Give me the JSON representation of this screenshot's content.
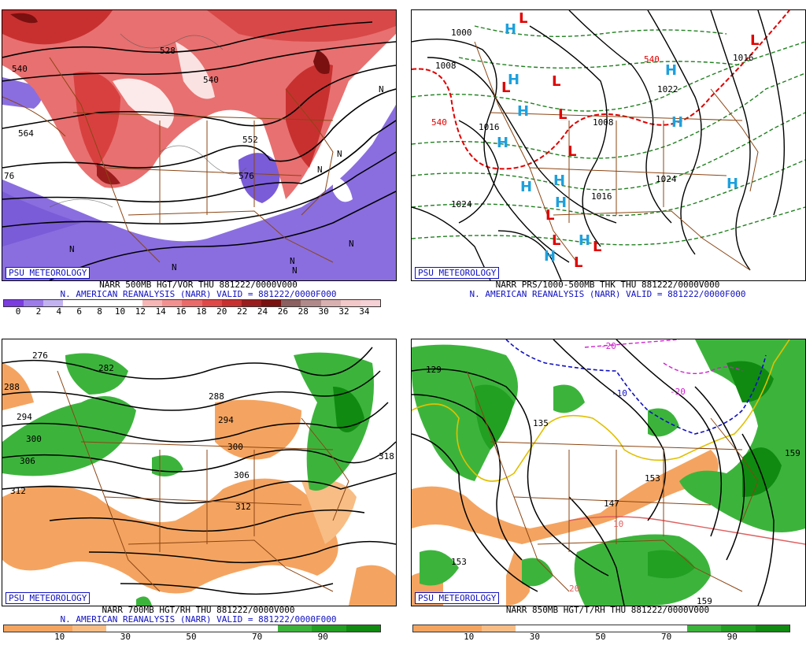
{
  "panels": [
    {
      "id": "tl",
      "caption1": "NARR 500MB HGT/VOR THU 881222/0000V000",
      "caption2": "N. AMERICAN REANALYSIS (NARR) VALID = 881222/0000F000",
      "logo": "PSU METEOROLOGY",
      "contour_labels": [
        "540",
        "564",
        "576",
        "528",
        "540",
        "552",
        "76"
      ],
      "colorbar_colors": [
        "#7b3ce0",
        "#9d7be8",
        "#c2b3f0",
        "#ffffff",
        "#ffffff",
        "#ffffff",
        "#ffffff",
        "#f7b6b6",
        "#f29090",
        "#ea6a6a",
        "#e04848",
        "#c83030",
        "#9a1c1c",
        "#7a1010",
        "#8c6060",
        "#b08a8a",
        "#d9b0b0",
        "#f2c8c8",
        "#f5d0d5"
      ],
      "colorbar_ticks": [
        "0",
        "2",
        "4",
        "6",
        "8",
        "10",
        "12",
        "14",
        "16",
        "18",
        "20",
        "22",
        "24",
        "26",
        "28",
        "30",
        "32",
        "34"
      ]
    },
    {
      "id": "tr",
      "caption1": "NARR PRS/1000-500MB THK THU 881222/0000V000",
      "caption2": "N. AMERICAN REANALYSIS (NARR) VALID = 881222/0000F000",
      "logo": "PSU METEOROLOGY",
      "contour_labels": [
        "1000",
        "1008",
        "1016",
        "1024",
        "1016",
        "1008",
        "1022",
        "1024",
        "1016",
        "540",
        "540",
        "1016"
      ],
      "colorbar_colors": [],
      "colorbar_ticks": []
    },
    {
      "id": "bl",
      "caption1": "NARR 700MB HGT/RH THU 881222/0000V000",
      "caption2": "N. AMERICAN REANALYSIS (NARR) VALID = 881222/0000F000",
      "logo": "PSU METEOROLOGY",
      "contour_labels": [
        "276",
        "282",
        "288",
        "294",
        "300",
        "306",
        "312",
        "288",
        "294",
        "300",
        "306",
        "312",
        "318"
      ],
      "colorbar_colors": [
        "#f4a460",
        "#f4a460",
        "#f7bd85",
        "#ffffff",
        "#ffffff",
        "#ffffff",
        "#ffffff",
        "#ffffff",
        "#3cb43c",
        "#22a022",
        "#108a10"
      ],
      "colorbar_ticks": [
        "10",
        "30",
        "50",
        "70",
        "90"
      ]
    },
    {
      "id": "br",
      "caption1": "NARR 850MB HGT/T/RH THU 881222/0000V000",
      "caption2": "",
      "logo": "PSU METEOROLOGY",
      "contour_labels": [
        "129",
        "135",
        "147",
        "153",
        "153",
        "159",
        "159",
        "153",
        "-10",
        "-20",
        "-20",
        "10",
        "20"
      ],
      "colorbar_colors": [
        "#f4a460",
        "#f4a460",
        "#f7bd85",
        "#ffffff",
        "#ffffff",
        "#ffffff",
        "#ffffff",
        "#ffffff",
        "#3cb43c",
        "#22a022",
        "#108a10"
      ],
      "colorbar_ticks": [
        "10",
        "30",
        "50",
        "70",
        "90"
      ]
    }
  ],
  "symbols": {
    "tr_L": [
      "L",
      "L",
      "L",
      "L",
      "L",
      "L",
      "L",
      "L",
      "L",
      "L"
    ],
    "tr_H": [
      "H",
      "H",
      "H",
      "H",
      "H",
      "H",
      "H",
      "H",
      "H",
      "H",
      "H",
      "H"
    ],
    "tl_N": [
      "N",
      "N",
      "N",
      "N",
      "N",
      "N",
      "N",
      "N"
    ]
  },
  "colors": {
    "contour": "#000000",
    "borders": "#8b4513",
    "low": "#e00000",
    "high": "#1ea0dc",
    "thickness": "#208020",
    "label_blue": "#1010c0"
  }
}
